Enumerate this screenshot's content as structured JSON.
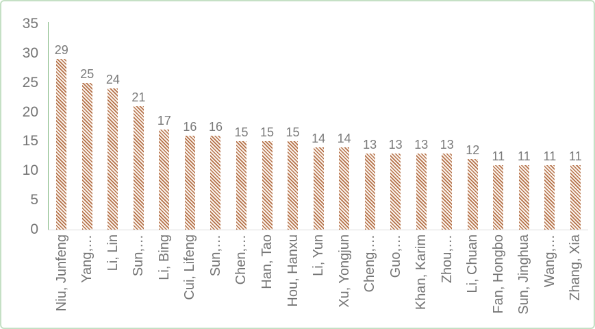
{
  "chart_data": {
    "type": "bar",
    "title": "",
    "xlabel": "",
    "ylabel": "",
    "categories": [
      "Niu, Junfeng",
      "Yang,…",
      "Li, Lin",
      "Sun,…",
      "Li, Bing",
      "Cui, Lifeng",
      "Sun,…",
      "Chen,…",
      "Han, Tao",
      "Hou, Hanxu",
      "Li, Yun",
      "Xu, Yongjun",
      "Cheng,…",
      "Guo,…",
      "Khan, Karim",
      "Zhou,…",
      "Li, Chuan",
      "Fan, Hongbo",
      "Sun, Jinghua",
      "Wang,…",
      "Zhang, Xia"
    ],
    "values": [
      29,
      25,
      24,
      21,
      17,
      16,
      16,
      15,
      15,
      15,
      14,
      14,
      13,
      13,
      13,
      13,
      12,
      11,
      11,
      11,
      11
    ],
    "y_ticks": [
      0,
      5,
      10,
      15,
      20,
      25,
      30,
      35
    ],
    "ylim": [
      0,
      35
    ],
    "grid": false,
    "legend": false,
    "data_labels": true,
    "x_label_rotation": -90,
    "colors": {
      "bar_stripe": "#b5724a",
      "bar_stripe_background": "#fbf4ee",
      "y_axis_line": "#86ba86",
      "x_baseline": "#dcdcdc",
      "text": "#757575",
      "frame_border": "#c5e0c5"
    }
  }
}
